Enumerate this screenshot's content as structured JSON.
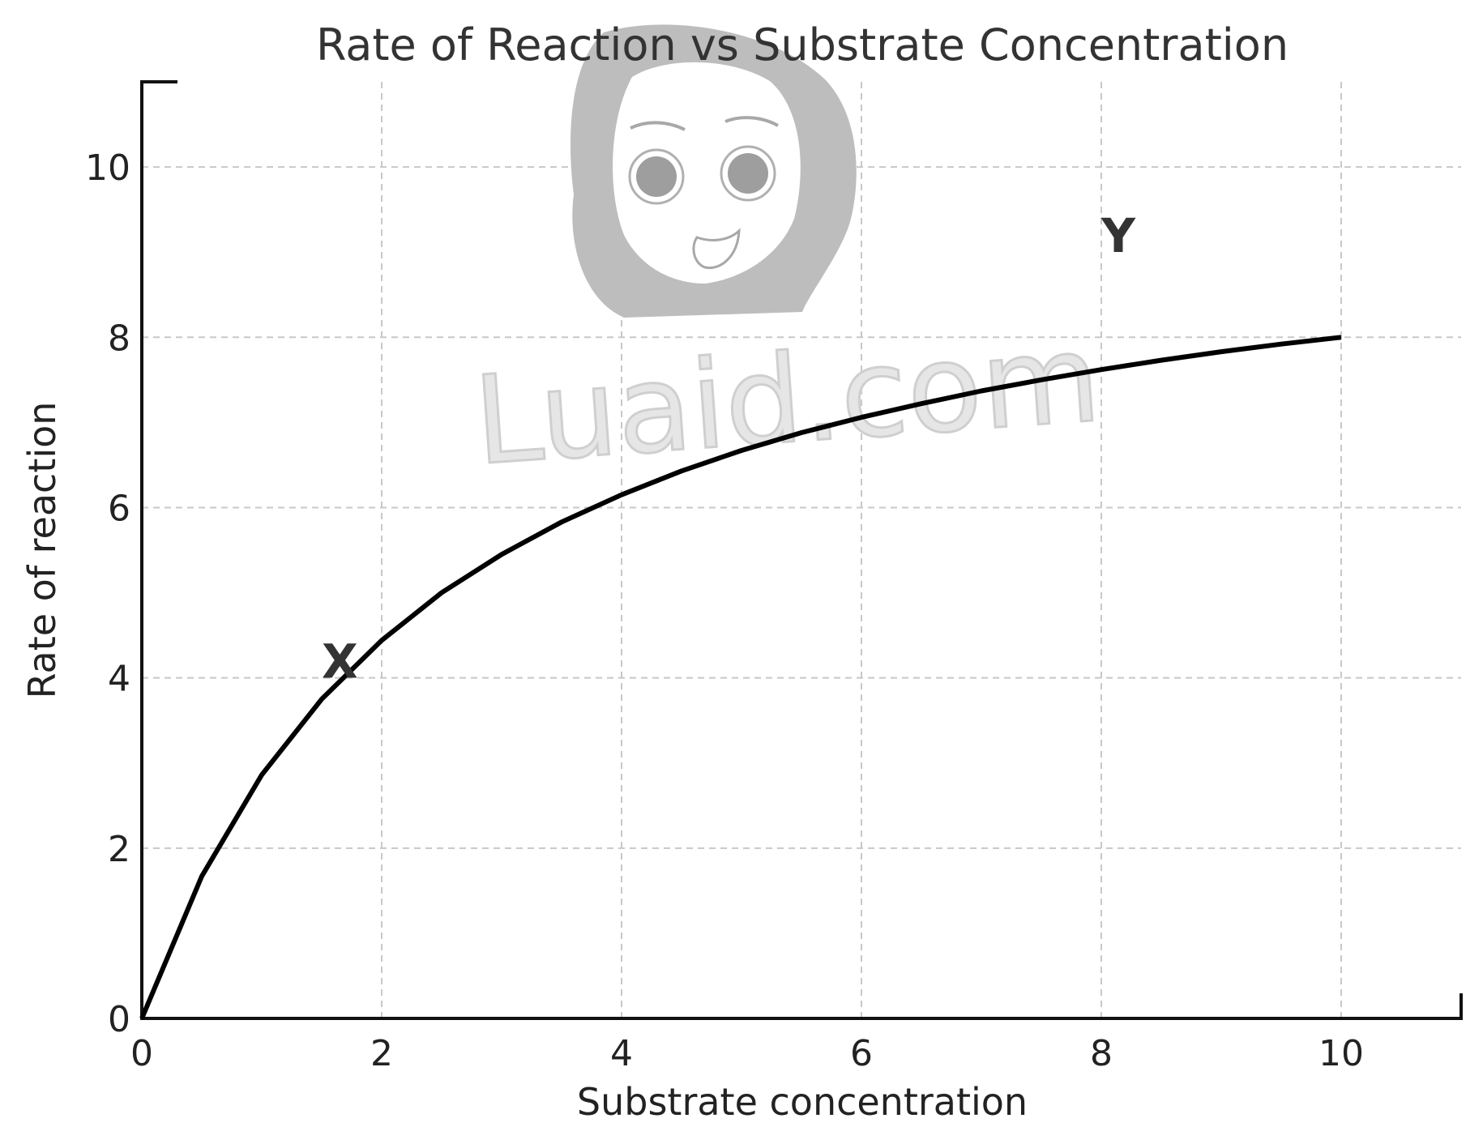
{
  "chart_data": {
    "type": "line",
    "title": "Rate of Reaction vs Substrate Concentration",
    "xlabel": "Substrate concentration",
    "ylabel": "Rate of reaction",
    "xlim": [
      0,
      11
    ],
    "ylim": [
      0,
      11
    ],
    "xticks": [
      0,
      2,
      4,
      6,
      8,
      10
    ],
    "yticks": [
      0,
      2,
      4,
      6,
      8,
      10
    ],
    "grid": true,
    "legend": "none",
    "series": [
      {
        "color": "#000000",
        "x": [
          0,
          0.5,
          1,
          1.5,
          2,
          2.5,
          3,
          3.5,
          4,
          4.5,
          5,
          5.5,
          6,
          6.5,
          7,
          7.5,
          8,
          8.5,
          9,
          9.5,
          10
        ],
        "y": [
          0,
          1.67,
          2.86,
          3.75,
          4.44,
          5.0,
          5.45,
          5.83,
          6.15,
          6.43,
          6.67,
          6.88,
          7.06,
          7.22,
          7.37,
          7.5,
          7.62,
          7.73,
          7.83,
          7.92,
          8.0
        ]
      }
    ],
    "annotations": [
      {
        "text": "X",
        "x": 1.5,
        "y": 4.0
      },
      {
        "text": "Y",
        "x": 8.0,
        "y": 9.0
      }
    ]
  },
  "watermark": {
    "text": "Luaid.com"
  }
}
